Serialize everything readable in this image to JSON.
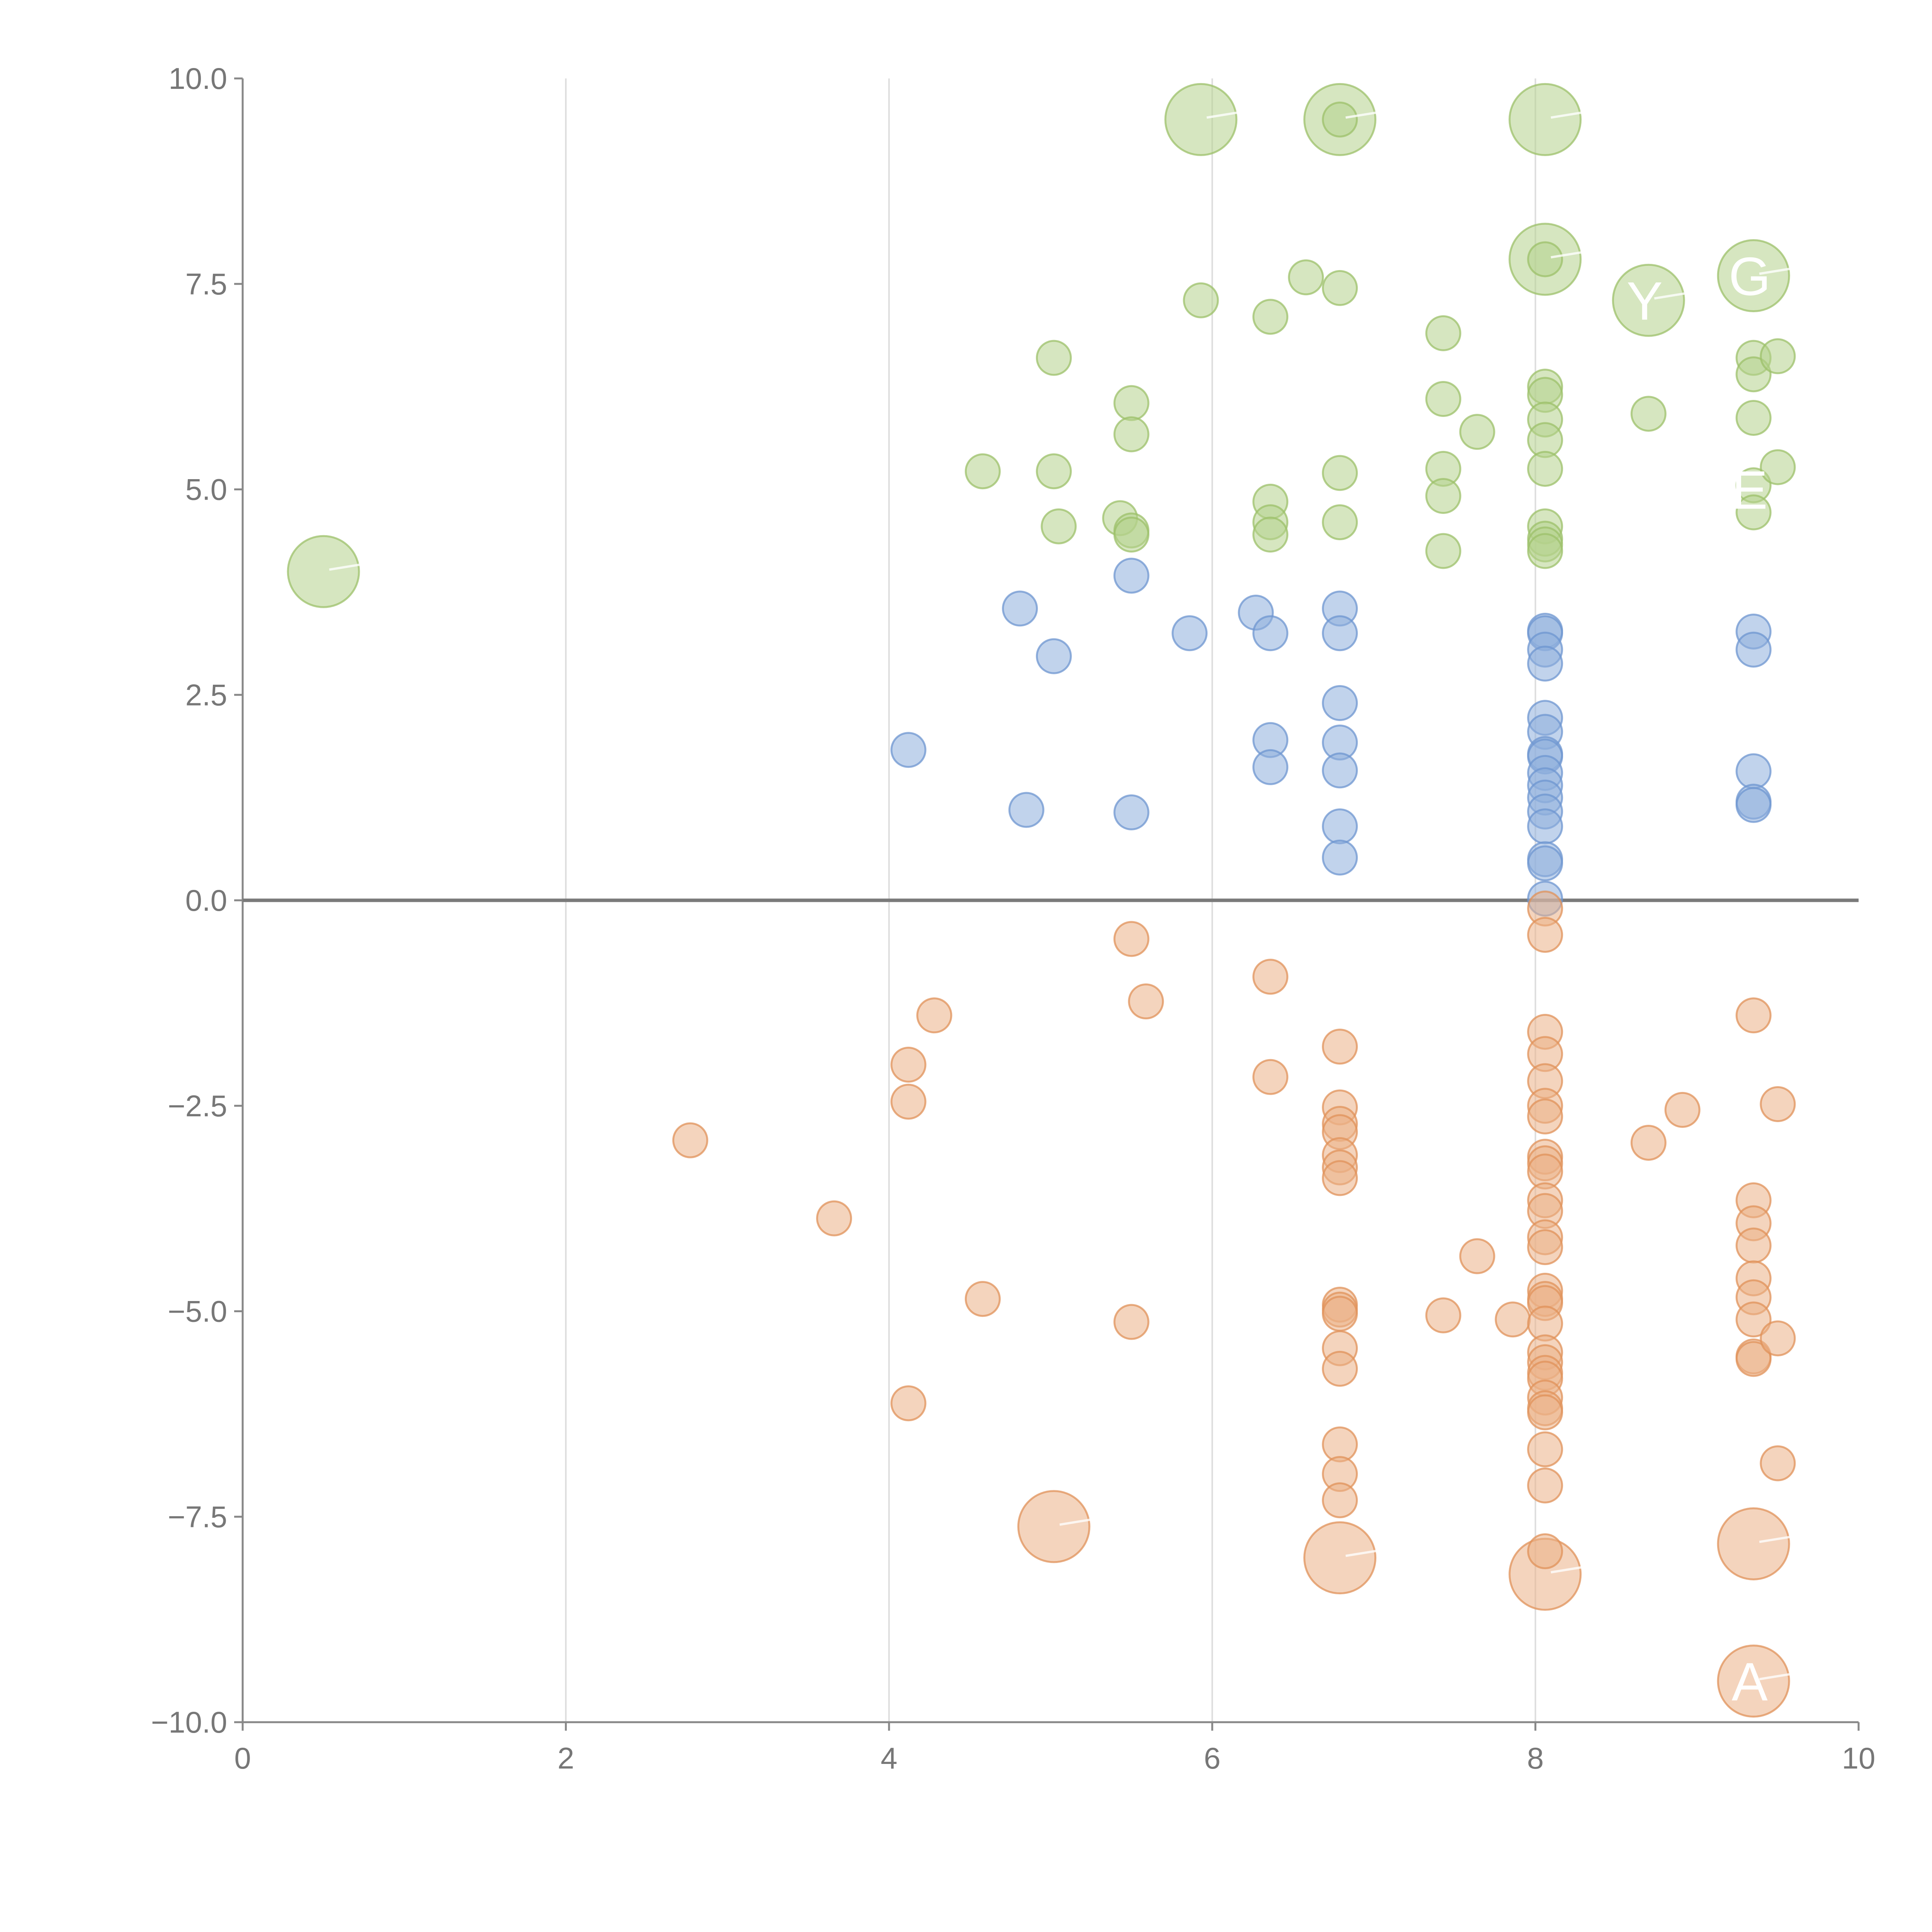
{
  "colors": {
    "green_fill": "#b5d18c",
    "green_stroke": "#9cc06a",
    "blue_fill": "#8eaedc",
    "blue_stroke": "#6e95d0",
    "orange_fill": "#ebb186",
    "orange_stroke": "#e09159",
    "grid": "#dddddd",
    "axis": "#888888",
    "zero_line": "#7a7a7a",
    "tick_text": "#777777"
  },
  "chart_data": {
    "type": "scatter",
    "title": "",
    "xlabel": "",
    "ylabel": "",
    "xlim": [
      0,
      10
    ],
    "ylim": [
      -10,
      10
    ],
    "x_ticks": [
      0,
      2,
      4,
      6,
      8,
      10
    ],
    "x_tick_labels": [
      "0",
      "2",
      "4",
      "6",
      "8",
      "10"
    ],
    "y_ticks": [
      10,
      7.5,
      5,
      2.5,
      0,
      -2.5,
      -5,
      -7.5,
      -10
    ],
    "y_tick_labels": [
      "10.0",
      "7.5",
      "5.0",
      "2.5",
      "0.0",
      "−2.5",
      "−5.0",
      "−7.5",
      "−10.0"
    ],
    "x_grid_at": [
      2,
      4,
      6,
      8
    ],
    "zero_line": 0,
    "series": [
      {
        "name": "green",
        "color_key": "green",
        "points": [
          [
            0.5,
            4.0,
            "l"
          ],
          [
            5.93,
            9.5,
            "l"
          ],
          [
            6.79,
            9.5,
            "l"
          ],
          [
            6.79,
            9.5,
            "s"
          ],
          [
            8.06,
            9.5,
            "l"
          ],
          [
            8.06,
            7.8,
            "l"
          ],
          [
            8.06,
            7.8,
            "s"
          ],
          [
            9.35,
            7.6,
            "l"
          ],
          [
            8.7,
            7.3,
            "l"
          ],
          [
            5.93,
            7.3,
            "s"
          ],
          [
            6.58,
            7.58,
            "s"
          ],
          [
            6.36,
            7.1,
            "s"
          ],
          [
            6.79,
            7.45,
            "s"
          ],
          [
            5.02,
            6.6,
            "s"
          ],
          [
            7.43,
            6.9,
            "s"
          ],
          [
            5.5,
            6.05,
            "s"
          ],
          [
            5.5,
            5.67,
            "s"
          ],
          [
            7.43,
            6.1,
            "s"
          ],
          [
            7.64,
            5.7,
            "s"
          ],
          [
            8.06,
            6.25,
            "s"
          ],
          [
            8.06,
            6.15,
            "s"
          ],
          [
            8.06,
            5.85,
            "s"
          ],
          [
            8.06,
            5.6,
            "s"
          ],
          [
            8.06,
            5.25,
            "s"
          ],
          [
            8.7,
            5.92,
            "s"
          ],
          [
            9.35,
            6.6,
            "s"
          ],
          [
            9.35,
            6.4,
            "s"
          ],
          [
            9.5,
            6.62,
            "s"
          ],
          [
            9.35,
            5.87,
            "s"
          ],
          [
            4.58,
            5.22,
            "s"
          ],
          [
            5.02,
            5.22,
            "s"
          ],
          [
            5.05,
            4.55,
            "s"
          ],
          [
            5.43,
            4.65,
            "s"
          ],
          [
            5.5,
            4.5,
            "s"
          ],
          [
            5.5,
            4.45,
            "s"
          ],
          [
            6.36,
            4.85,
            "s"
          ],
          [
            6.36,
            4.6,
            "s"
          ],
          [
            6.36,
            4.45,
            "s"
          ],
          [
            6.79,
            5.2,
            "s"
          ],
          [
            6.79,
            4.6,
            "s"
          ],
          [
            7.43,
            5.25,
            "s"
          ],
          [
            7.43,
            4.92,
            "s"
          ],
          [
            7.43,
            4.25,
            "s"
          ],
          [
            8.06,
            4.55,
            "s"
          ],
          [
            8.06,
            4.4,
            "s"
          ],
          [
            8.06,
            4.33,
            "s"
          ],
          [
            8.06,
            4.25,
            "s"
          ],
          [
            9.35,
            5.05,
            "s"
          ],
          [
            9.35,
            4.72,
            "s"
          ],
          [
            9.5,
            5.27,
            "s"
          ]
        ]
      },
      {
        "name": "blue",
        "color_key": "blue",
        "points": [
          [
            4.81,
            3.55
          ],
          [
            5.5,
            3.95
          ],
          [
            5.02,
            2.97
          ],
          [
            5.86,
            3.25
          ],
          [
            6.27,
            3.5
          ],
          [
            6.36,
            3.25
          ],
          [
            6.79,
            3.55
          ],
          [
            6.79,
            3.25
          ],
          [
            6.79,
            2.4
          ],
          [
            6.79,
            1.92
          ],
          [
            6.79,
            1.58
          ],
          [
            6.79,
            0.9
          ],
          [
            6.79,
            0.52
          ],
          [
            6.36,
            1.95
          ],
          [
            6.36,
            1.62
          ],
          [
            4.12,
            1.83
          ],
          [
            4.85,
            1.1
          ],
          [
            5.5,
            1.07
          ],
          [
            8.06,
            3.28
          ],
          [
            8.06,
            3.25
          ],
          [
            8.06,
            3.05
          ],
          [
            8.06,
            2.88
          ],
          [
            8.06,
            2.22
          ],
          [
            8.06,
            2.05
          ],
          [
            8.06,
            1.78
          ],
          [
            8.06,
            1.75
          ],
          [
            8.06,
            1.55
          ],
          [
            8.06,
            1.4
          ],
          [
            8.06,
            1.25
          ],
          [
            8.06,
            1.08
          ],
          [
            8.06,
            0.9
          ],
          [
            8.06,
            0.5
          ],
          [
            8.06,
            0.45
          ],
          [
            8.06,
            0.02
          ],
          [
            9.35,
            3.27
          ],
          [
            9.35,
            3.05
          ],
          [
            9.35,
            1.57
          ],
          [
            9.35,
            1.2
          ],
          [
            9.35,
            1.16
          ]
        ]
      },
      {
        "name": "orange",
        "color_key": "orange",
        "points": [
          [
            5.5,
            -0.47,
            "s"
          ],
          [
            5.59,
            -1.23,
            "s"
          ],
          [
            6.36,
            -0.93,
            "s"
          ],
          [
            6.36,
            -2.15,
            "s"
          ],
          [
            4.28,
            -1.4,
            "s"
          ],
          [
            4.12,
            -2.0,
            "s"
          ],
          [
            4.12,
            -2.45,
            "s"
          ],
          [
            2.77,
            -2.92,
            "s"
          ],
          [
            3.66,
            -3.87,
            "s"
          ],
          [
            4.58,
            -4.85,
            "s"
          ],
          [
            5.5,
            -5.13,
            "s"
          ],
          [
            4.12,
            -6.12,
            "s"
          ],
          [
            5.02,
            -7.62,
            "l"
          ],
          [
            6.79,
            -8.0,
            "l"
          ],
          [
            8.06,
            -8.2,
            "l"
          ],
          [
            9.35,
            -7.83,
            "l"
          ],
          [
            9.35,
            -9.5,
            "l"
          ],
          [
            6.79,
            -1.78,
            "s"
          ],
          [
            6.79,
            -2.52,
            "s"
          ],
          [
            6.79,
            -2.72,
            "s"
          ],
          [
            6.79,
            -2.82,
            "s"
          ],
          [
            6.79,
            -3.1,
            "s"
          ],
          [
            6.79,
            -3.25,
            "s"
          ],
          [
            6.79,
            -3.38,
            "s"
          ],
          [
            6.79,
            -4.92,
            "s"
          ],
          [
            6.79,
            -4.98,
            "s"
          ],
          [
            6.79,
            -5.03,
            "s"
          ],
          [
            6.79,
            -5.45,
            "s"
          ],
          [
            6.79,
            -5.7,
            "s"
          ],
          [
            6.79,
            -6.62,
            "s"
          ],
          [
            6.79,
            -6.98,
            "s"
          ],
          [
            6.79,
            -7.3,
            "s"
          ],
          [
            7.43,
            -5.05,
            "s"
          ],
          [
            7.64,
            -4.33,
            "s"
          ],
          [
            7.86,
            -5.1,
            "s"
          ],
          [
            8.06,
            -0.1,
            "s"
          ],
          [
            8.06,
            -0.42,
            "s"
          ],
          [
            8.06,
            -1.6,
            "s"
          ],
          [
            8.06,
            -1.87,
            "s"
          ],
          [
            8.06,
            -2.2,
            "s"
          ],
          [
            8.06,
            -2.5,
            "s"
          ],
          [
            8.06,
            -2.63,
            "s"
          ],
          [
            8.06,
            -3.12,
            "s"
          ],
          [
            8.06,
            -3.2,
            "s"
          ],
          [
            8.06,
            -3.3,
            "s"
          ],
          [
            8.06,
            -3.65,
            "s"
          ],
          [
            8.06,
            -3.78,
            "s"
          ],
          [
            8.06,
            -4.1,
            "s"
          ],
          [
            8.06,
            -4.22,
            "s"
          ],
          [
            8.06,
            -4.75,
            "s"
          ],
          [
            8.06,
            -4.85,
            "s"
          ],
          [
            8.06,
            -4.9,
            "s"
          ],
          [
            8.06,
            -5.15,
            "s"
          ],
          [
            8.06,
            -5.5,
            "s"
          ],
          [
            8.06,
            -5.62,
            "s"
          ],
          [
            8.06,
            -5.75,
            "s"
          ],
          [
            8.06,
            -5.82,
            "s"
          ],
          [
            8.06,
            -6.05,
            "s"
          ],
          [
            8.06,
            -6.18,
            "s"
          ],
          [
            8.06,
            -6.23,
            "s"
          ],
          [
            8.06,
            -6.68,
            "s"
          ],
          [
            8.06,
            -7.12,
            "s"
          ],
          [
            8.06,
            -7.92,
            "s"
          ],
          [
            8.7,
            -2.95,
            "s"
          ],
          [
            8.91,
            -2.55,
            "s"
          ],
          [
            9.35,
            -1.4,
            "s"
          ],
          [
            9.35,
            -3.65,
            "s"
          ],
          [
            9.35,
            -3.93,
            "s"
          ],
          [
            9.35,
            -4.2,
            "s"
          ],
          [
            9.35,
            -4.6,
            "s"
          ],
          [
            9.35,
            -4.83,
            "s"
          ],
          [
            9.35,
            -5.1,
            "s"
          ],
          [
            9.35,
            -5.55,
            "s"
          ],
          [
            9.35,
            -5.58,
            "s"
          ],
          [
            9.5,
            -2.48,
            "s"
          ],
          [
            9.5,
            -5.33,
            "s"
          ],
          [
            9.5,
            -6.85,
            "s"
          ]
        ]
      }
    ],
    "annotations": [
      {
        "text": "Y",
        "x": 8.7,
        "y": 7.3
      },
      {
        "text": "G",
        "x": 9.35,
        "y": 7.6
      },
      {
        "text": "E",
        "x": 9.35,
        "y": 5.0
      },
      {
        "text": "A",
        "x": 9.35,
        "y": -9.5
      }
    ]
  }
}
